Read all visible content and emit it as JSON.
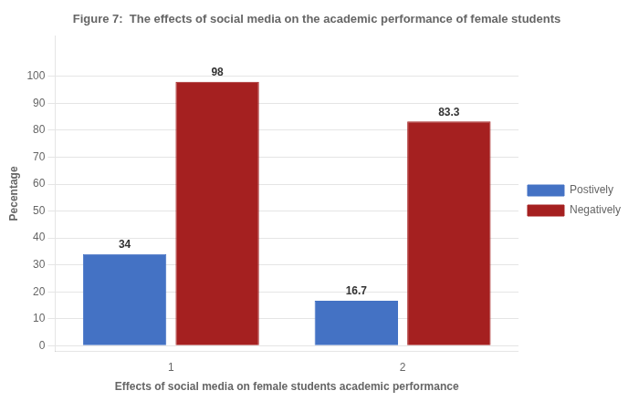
{
  "chart_data": {
    "type": "bar",
    "title": "Figure 7:  The effects of social media on the academic performance of female students",
    "xlabel": "Effects of social media on female students academic performance",
    "ylabel": "Pecentage",
    "categories": [
      "1",
      "2"
    ],
    "series": [
      {
        "name": "Postively",
        "color": "#4472C4",
        "values": [
          34,
          16.7
        ]
      },
      {
        "name": "Negatively",
        "color": "#A52020",
        "values": [
          98,
          83.3
        ]
      }
    ],
    "ylim": [
      -2,
      115
    ],
    "yticks": [
      0,
      10,
      20,
      30,
      40,
      50,
      60,
      70,
      80,
      90,
      100
    ],
    "grid": true,
    "legend": "right",
    "data_labels": true
  }
}
